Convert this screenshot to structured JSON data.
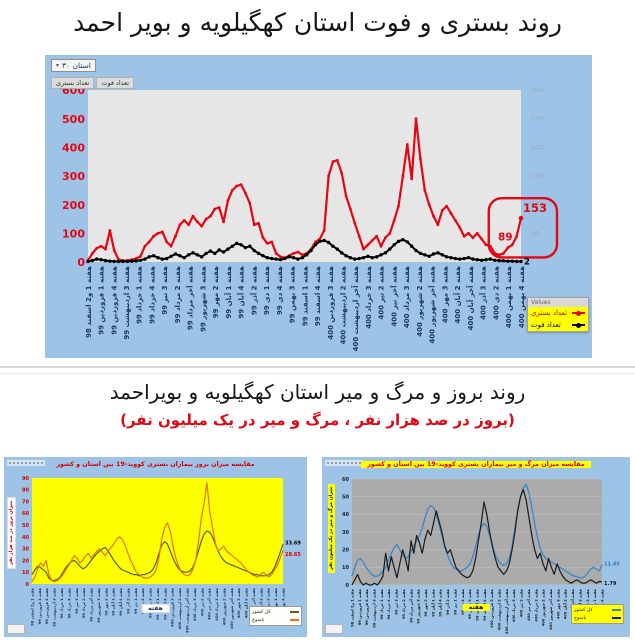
{
  "page": {
    "title1": "روند بستری و فوت استان کهگیلویه و بویر احمد",
    "title2": "روند بروز و مرگ و میر استان کهگیلویه و بویراحمد",
    "subtitle2": "(بروز در صد هزار نفر ، مرگ و میر در یک میلیون نفر)"
  },
  "top_chart": {
    "province_label": "استان ۳۰",
    "tabs": [
      "تعداد بستری",
      "تعداد فوت"
    ],
    "legend_title": "Values"
  },
  "colors": {
    "panel_blue": "#9DC3E6",
    "hospitalized_red": "#e30613",
    "deaths_black": "#000000",
    "incidence_country_green": "#4F6228",
    "incidence_province_orange": "#E8720C",
    "mortality_country_blue": "#3A87C8",
    "mortality_province_black": "#1a1a1a"
  },
  "week_labels": [
    "هفته 1 و2 اسفند 98",
    "هفته 1 فروردین 99",
    "هفته 4 فروردین 99",
    "هفته 3 اردیبهشت 99",
    "هفته 1 خرداد 99",
    "هفته 4 خرداد 99",
    "هفته 3 تیر 99",
    "هفته 2 مرداد 99",
    "هفته آخر مرداد 99",
    "هفته 3 شهریور 99",
    "هفته 2 مهر 99",
    "هفته 1 آبان 99",
    "هفته 4 آبان 99",
    "هفته 2 آذر 99",
    "هفته 1 دی 99",
    "هفته 4 دی 99",
    "هفته 3 بهمن 99",
    "هفته 1 اسفند 99",
    "هفته 4 اسفند 99",
    "هفته 3 فروردین 400",
    "هفته 2 اردیبهشت 400",
    "هفته آخر اردیبهشت 400",
    "هفته 3 خرداد 400",
    "هفته 2 تیر 400",
    "هفته آخر تیر 400",
    "هفته 3 مرداد 400",
    "هفته 2 شهریور 400",
    "هفته آخر شهریور 400",
    "هفته 3 مهر 400",
    "هفته 2 آبان 400",
    "هفته آخر آبان 400",
    "هفته 3 آذر 400",
    "هفته 2 دی 400",
    "هفته 1 بهمن 400",
    "هفته 4 بهمن 400"
  ],
  "chart_data": [
    {
      "id": "main",
      "type": "line",
      "title": "روند بستری و فوت استان کهگیلویه و بویر احمد",
      "plot_bg": "#E7E6E6",
      "ylim": [
        0,
        600
      ],
      "yticks": [
        600,
        500,
        400,
        300,
        200,
        100,
        0
      ],
      "ytick_color": "#e30613",
      "y2lim": [
        0,
        300
      ],
      "y2ticks": [
        300,
        250,
        200,
        150,
        100,
        50
      ],
      "xtick_color": "#1F3864",
      "legend_position": "bottom-right",
      "series": [
        {
          "name": "تعداد بستری",
          "color": "#e30613",
          "values": [
            5,
            30,
            48,
            55,
            45,
            110,
            40,
            8,
            5,
            5,
            8,
            12,
            20,
            55,
            70,
            90,
            100,
            105,
            70,
            55,
            90,
            130,
            145,
            130,
            160,
            140,
            125,
            150,
            160,
            185,
            190,
            140,
            215,
            250,
            265,
            270,
            240,
            205,
            130,
            135,
            85,
            65,
            70,
            30,
            18,
            15,
            22,
            30,
            35,
            25,
            30,
            45,
            70,
            80,
            110,
            300,
            350,
            355,
            310,
            230,
            185,
            135,
            90,
            45,
            60,
            75,
            90,
            55,
            85,
            100,
            145,
            195,
            300,
            410,
            290,
            500,
            360,
            250,
            200,
            160,
            130,
            180,
            195,
            170,
            145,
            120,
            90,
            100,
            85,
            100,
            80,
            60,
            55,
            30,
            25,
            30,
            50,
            60,
            89,
            153
          ]
        },
        {
          "name": "تعداد فوت",
          "color": "#000000",
          "values": [
            2,
            5,
            10,
            8,
            5,
            3,
            2,
            2,
            2,
            2,
            3,
            4,
            6,
            10,
            18,
            22,
            15,
            10,
            12,
            20,
            28,
            22,
            15,
            25,
            32,
            25,
            18,
            30,
            38,
            30,
            42,
            35,
            45,
            55,
            65,
            60,
            50,
            55,
            40,
            30,
            22,
            15,
            12,
            10,
            8,
            12,
            18,
            15,
            10,
            15,
            25,
            40,
            60,
            72,
            75,
            68,
            55,
            45,
            32,
            22,
            15,
            10,
            12,
            15,
            20,
            15,
            18,
            25,
            32,
            45,
            60,
            72,
            78,
            70,
            55,
            40,
            30,
            25,
            20,
            28,
            32,
            25,
            18,
            15,
            12,
            10,
            12,
            15,
            10,
            8,
            6,
            8,
            10,
            6,
            5,
            4,
            3,
            3,
            2,
            2
          ]
        }
      ],
      "annotations": {
        "box_top": "153",
        "box_left": "89",
        "line_end": "2"
      }
    },
    {
      "id": "incidence",
      "type": "line",
      "title": "مقایسه میزان بروز بیماران بستری کووید-19 بین استان و کشور",
      "ylabel": "میزان بروز در صد هزار نفر",
      "xlabel": "هفته",
      "plot_bg": "#FFFF00",
      "ylim": [
        0,
        90
      ],
      "yticks": [
        90,
        80,
        70,
        60,
        50,
        40,
        30,
        20,
        10,
        0
      ],
      "ytick_color": "#d40000",
      "xtick_color": "#1F3864",
      "series": [
        {
          "name": "کل کشور",
          "color": "#4F6228",
          "values": [
            8,
            12,
            15,
            14,
            12,
            10,
            5,
            3,
            3,
            4,
            6,
            10,
            14,
            17,
            19,
            20,
            18,
            15,
            13,
            14,
            17,
            20,
            23,
            26,
            28,
            30,
            31,
            28,
            24,
            20,
            17,
            14,
            12,
            11,
            10,
            9,
            8,
            8,
            7,
            8,
            8,
            9,
            10,
            13,
            18,
            26,
            33,
            36,
            34,
            28,
            22,
            17,
            13,
            11,
            10,
            10,
            11,
            14,
            20,
            28,
            36,
            42,
            45,
            44,
            40,
            34,
            28,
            23,
            20,
            18,
            17,
            16,
            15,
            14,
            13,
            12,
            11,
            10,
            9,
            8,
            8,
            7,
            7,
            7,
            8,
            10,
            14,
            20,
            27,
            33.7
          ]
        },
        {
          "name": "یاسوج",
          "color": "#E8720C",
          "values": [
            2,
            6,
            13,
            18,
            15,
            20,
            8,
            3,
            2,
            3,
            5,
            8,
            12,
            16,
            20,
            24,
            22,
            18,
            20,
            24,
            26,
            22,
            25,
            28,
            30,
            27,
            24,
            28,
            31,
            34,
            38,
            40,
            38,
            33,
            26,
            20,
            15,
            10,
            8,
            6,
            5,
            5,
            6,
            8,
            12,
            22,
            38,
            48,
            52,
            45,
            32,
            22,
            15,
            10,
            8,
            7,
            8,
            12,
            20,
            35,
            55,
            68,
            86,
            62,
            48,
            35,
            28,
            30,
            32,
            28,
            26,
            24,
            22,
            20,
            18,
            15,
            12,
            10,
            8,
            7,
            6,
            8,
            10,
            8,
            6,
            8,
            12,
            16,
            22,
            28.7
          ]
        }
      ],
      "end_labels": [
        {
          "text": "33.69",
          "v": 33.7,
          "dy": -2,
          "color": "#000000"
        },
        {
          "text": "28.65",
          "v": 28.7,
          "dy": 4,
          "color": "#d40000"
        }
      ]
    },
    {
      "id": "mortality",
      "type": "line",
      "title": "مقایسه میزان مرگ و میر بیماران بستری کووید-19 بین استان و کشور",
      "ylabel": "میزان مرگ و میر در یک میلیون نفر",
      "xlabel": "هفته",
      "plot_bg": "#ABABAB",
      "grid": true,
      "grid_color": "#c4c4c4",
      "ylim": [
        0,
        60
      ],
      "yticks": [
        60,
        50,
        40,
        30,
        20,
        10,
        0
      ],
      "ytick_color": "#222222",
      "xtick_color": "#222222",
      "series": [
        {
          "name": "کل کشور",
          "color": "#3A87C8",
          "values": [
            5,
            10,
            14,
            15,
            13,
            10,
            8,
            6,
            5,
            5,
            6,
            8,
            10,
            14,
            18,
            21,
            23,
            20,
            17,
            15,
            16,
            19,
            22,
            25,
            28,
            32,
            38,
            43,
            45,
            44,
            40,
            34,
            28,
            22,
            17,
            13,
            10,
            9,
            8,
            8,
            9,
            10,
            12,
            16,
            22,
            28,
            33,
            35,
            33,
            28,
            22,
            17,
            14,
            12,
            11,
            12,
            15,
            22,
            32,
            42,
            50,
            55,
            57,
            52,
            44,
            35,
            27,
            21,
            17,
            15,
            14,
            13,
            12,
            11,
            10,
            9,
            8,
            7,
            6,
            5,
            5,
            4,
            4,
            5,
            7,
            9,
            10,
            9,
            8,
            11.5
          ]
        },
        {
          "name": "یاسوج",
          "color": "#1a1a1a",
          "values": [
            0,
            3,
            6,
            2,
            0,
            1,
            0,
            0,
            1,
            0,
            2,
            5,
            18,
            8,
            16,
            10,
            4,
            12,
            20,
            15,
            8,
            25,
            18,
            28,
            24,
            18,
            26,
            31,
            28,
            35,
            42,
            36,
            30,
            22,
            18,
            20,
            15,
            10,
            8,
            6,
            5,
            4,
            5,
            8,
            15,
            25,
            35,
            47,
            40,
            30,
            22,
            15,
            10,
            8,
            6,
            8,
            12,
            20,
            30,
            42,
            50,
            54,
            48,
            38,
            28,
            20,
            15,
            18,
            12,
            8,
            15,
            10,
            6,
            12,
            8,
            5,
            3,
            2,
            1,
            2,
            3,
            2,
            1,
            1,
            2,
            3,
            2,
            1,
            2,
            1.8
          ]
        }
      ],
      "end_labels": [
        {
          "text": "11.45",
          "v": 11.5,
          "dy": -1,
          "color": "#2e7cb8"
        },
        {
          "text": "1.79",
          "v": 1.8,
          "dy": 1,
          "color": "#111111"
        }
      ]
    }
  ]
}
